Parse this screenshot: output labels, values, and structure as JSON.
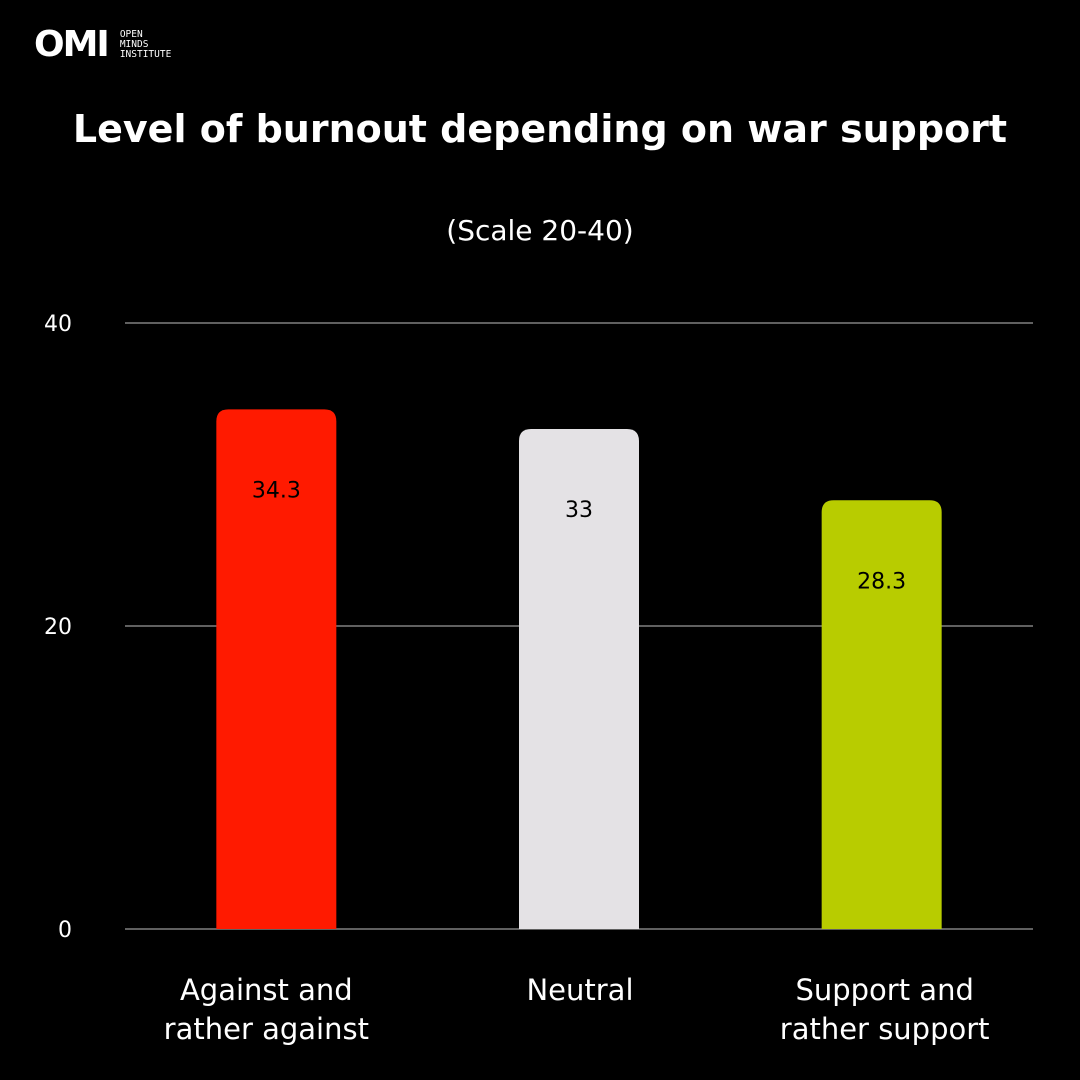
{
  "logo": {
    "mark": "OMI",
    "line1": "OPEN",
    "line2": "MINDS",
    "line3": "INSTITUTE"
  },
  "chart_data": {
    "type": "bar",
    "title": "Level of burnout depending on war support",
    "subtitle": "(Scale 20-40)",
    "categories": [
      [
        "Against and",
        "rather against"
      ],
      [
        "Neutral"
      ],
      [
        "Support and",
        "rather support"
      ]
    ],
    "values": [
      34.3,
      33,
      28.3
    ],
    "value_labels": [
      "34.3",
      "33",
      "28.3"
    ],
    "colors": [
      "#ff1a00",
      "#e4e2e5",
      "#b8cc00"
    ],
    "yticks": [
      "0",
      "20",
      "40"
    ],
    "ytick_values": [
      0,
      20,
      40
    ],
    "ylim": [
      0,
      40
    ],
    "grid": true,
    "background": "#000000",
    "text_color": "#ffffff",
    "gridline_color": "#bfbfbf"
  }
}
